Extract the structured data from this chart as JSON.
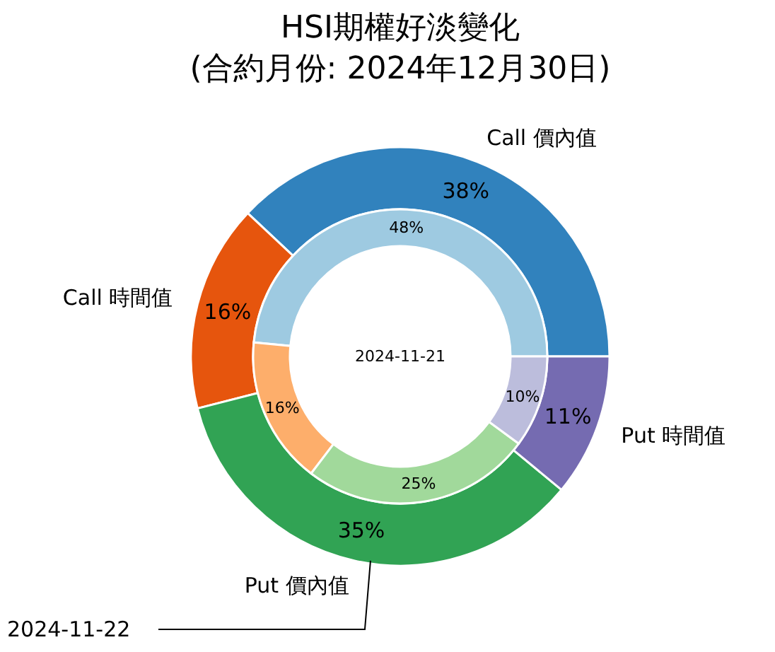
{
  "chart_data": {
    "type": "donut",
    "title": "HSI期權好淡變化",
    "subtitle": "(合約月份: 2024年12月30日)",
    "categories": [
      "Call 價內值",
      "Call 時間值",
      "Put 價內值",
      "Put 時間值"
    ],
    "series": [
      {
        "name": "2024-11-22",
        "values": [
          38,
          16,
          35,
          11
        ],
        "value_labels": [
          "38%",
          "16%",
          "35%",
          "11%"
        ],
        "colors": [
          "#3182bd",
          "#e6550d",
          "#31a354",
          "#756bb1"
        ]
      },
      {
        "name": "2024-11-21",
        "values": [
          48,
          16,
          25,
          10
        ],
        "value_labels": [
          "48%",
          "16%",
          "25%",
          "10%"
        ],
        "colors": [
          "#9ecae1",
          "#fdae6b",
          "#a1d99b",
          "#bcbddc"
        ]
      }
    ]
  }
}
